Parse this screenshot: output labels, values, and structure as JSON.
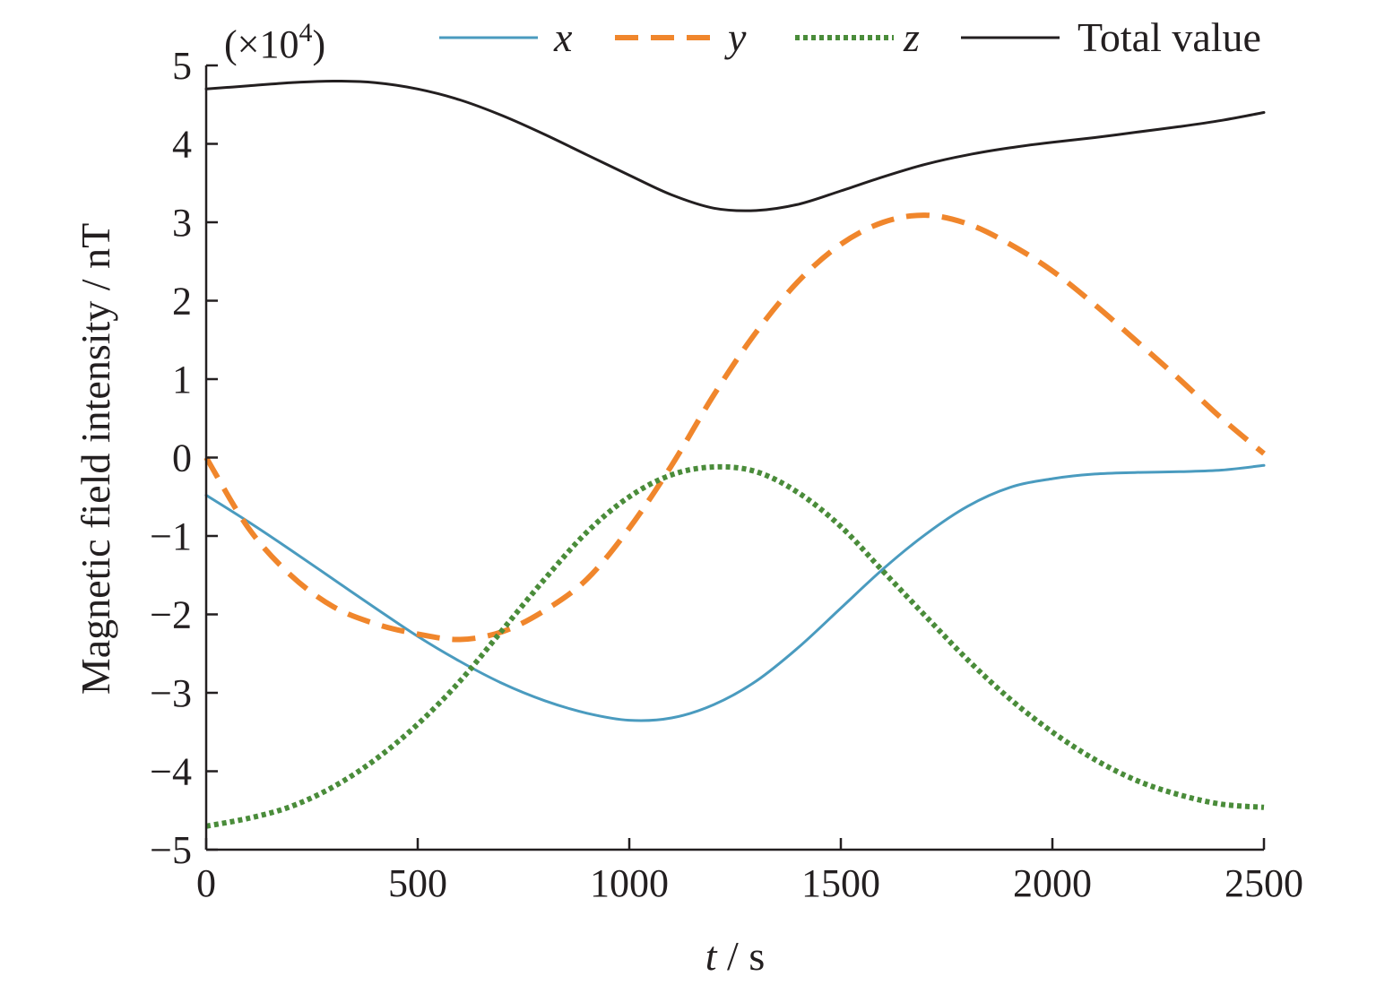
{
  "chart_data": {
    "type": "line",
    "xlabel_var": "t",
    "xlabel_unit": " / s",
    "ylabel": "Magnetic field intensity / nT",
    "y_multiplier": "(×10",
    "y_multiplier_exp": "4",
    "y_multiplier_close": ")",
    "xlim": [
      0,
      2500
    ],
    "ylim": [
      -5,
      5
    ],
    "x_ticks": [
      0,
      500,
      1000,
      1500,
      2000,
      2500
    ],
    "y_ticks": [
      5,
      4,
      3,
      2,
      1,
      0,
      -1,
      -2,
      -3,
      -4,
      -5
    ],
    "y_tick_labels": [
      "5",
      "4",
      "3",
      "2",
      "1",
      "0",
      "−1",
      "−2",
      "−3",
      "−4",
      "−5"
    ],
    "grid": false,
    "legend_position": "top",
    "series": [
      {
        "name": "x",
        "italic": true,
        "color": "#4a9bbf",
        "style": "solid",
        "x": [
          0,
          100,
          200,
          300,
          400,
          500,
          600,
          700,
          800,
          900,
          1000,
          1100,
          1200,
          1300,
          1400,
          1500,
          1600,
          1700,
          1800,
          1900,
          2000,
          2100,
          2200,
          2300,
          2400,
          2500
        ],
        "y": [
          -0.48,
          -0.82,
          -1.18,
          -1.55,
          -1.92,
          -2.28,
          -2.6,
          -2.88,
          -3.1,
          -3.26,
          -3.35,
          -3.32,
          -3.15,
          -2.85,
          -2.42,
          -1.92,
          -1.42,
          -0.98,
          -0.62,
          -0.38,
          -0.27,
          -0.21,
          -0.19,
          -0.18,
          -0.16,
          -0.1
        ]
      },
      {
        "name": "y",
        "italic": true,
        "color": "#f0862c",
        "style": "dashed",
        "x": [
          0,
          100,
          200,
          300,
          400,
          500,
          600,
          700,
          800,
          900,
          1000,
          1100,
          1200,
          1300,
          1400,
          1500,
          1600,
          1700,
          1800,
          1900,
          2000,
          2100,
          2200,
          2300,
          2400,
          2500
        ],
        "y": [
          0,
          -0.9,
          -1.5,
          -1.9,
          -2.12,
          -2.25,
          -2.32,
          -2.22,
          -1.95,
          -1.55,
          -0.9,
          -0.1,
          0.8,
          1.6,
          2.25,
          2.72,
          3.0,
          3.09,
          2.98,
          2.72,
          2.38,
          1.95,
          1.48,
          1.0,
          0.5,
          0.05
        ]
      },
      {
        "name": "z",
        "italic": true,
        "color": "#4a8c3a",
        "style": "dotted",
        "x": [
          0,
          100,
          200,
          300,
          400,
          500,
          600,
          700,
          800,
          900,
          1000,
          1100,
          1200,
          1300,
          1400,
          1500,
          1600,
          1700,
          1800,
          1900,
          2000,
          2100,
          2200,
          2300,
          2400,
          2500
        ],
        "y": [
          -4.7,
          -4.6,
          -4.45,
          -4.2,
          -3.85,
          -3.4,
          -2.85,
          -2.2,
          -1.55,
          -0.95,
          -0.5,
          -0.22,
          -0.12,
          -0.18,
          -0.45,
          -0.88,
          -1.45,
          -2.02,
          -2.58,
          -3.08,
          -3.5,
          -3.85,
          -4.12,
          -4.3,
          -4.42,
          -4.46
        ]
      },
      {
        "name": "Total value",
        "italic": false,
        "color": "#231f20",
        "style": "solid",
        "x": [
          0,
          100,
          200,
          300,
          400,
          500,
          600,
          700,
          800,
          900,
          1000,
          1100,
          1200,
          1300,
          1400,
          1500,
          1600,
          1700,
          1800,
          1900,
          2000,
          2100,
          2200,
          2300,
          2400,
          2500
        ],
        "y": [
          4.7,
          4.74,
          4.78,
          4.8,
          4.78,
          4.7,
          4.56,
          4.36,
          4.12,
          3.86,
          3.6,
          3.35,
          3.18,
          3.15,
          3.23,
          3.4,
          3.58,
          3.74,
          3.86,
          3.95,
          4.02,
          4.08,
          4.15,
          4.22,
          4.3,
          4.4
        ]
      }
    ]
  }
}
